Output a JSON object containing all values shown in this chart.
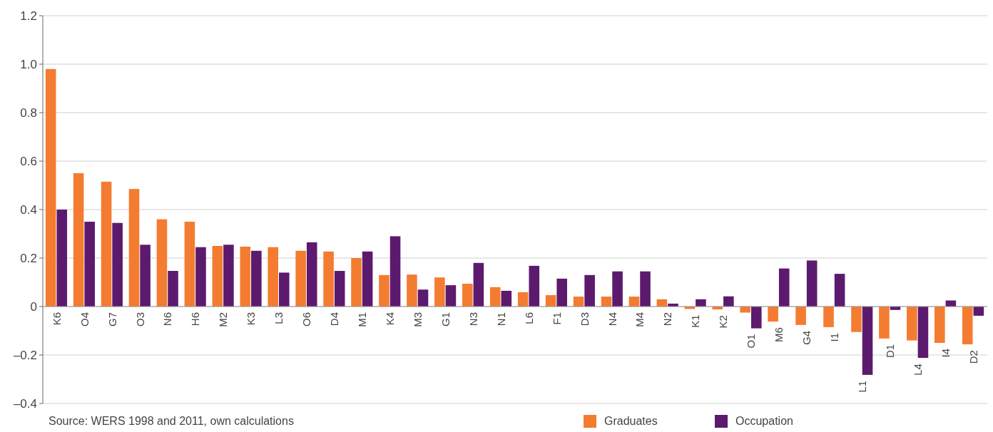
{
  "chart_data": {
    "type": "bar",
    "categories": [
      "K6",
      "O4",
      "G7",
      "O3",
      "N6",
      "H6",
      "M2",
      "K3",
      "L3",
      "O6",
      "D4",
      "M1",
      "K4",
      "M3",
      "G1",
      "N3",
      "N1",
      "L6",
      "F1",
      "D3",
      "N4",
      "M4",
      "N2",
      "K1",
      "K2",
      "O1",
      "M6",
      "G4",
      "I1",
      "L1",
      "D1",
      "L4",
      "I4",
      "D2"
    ],
    "series": [
      {
        "name": "Graduates",
        "color": "#f47c30",
        "values": [
          0.98,
          0.55,
          0.515,
          0.485,
          0.36,
          0.35,
          0.25,
          0.247,
          0.245,
          0.23,
          0.227,
          0.2,
          0.13,
          0.132,
          0.12,
          0.094,
          0.08,
          0.059,
          0.047,
          0.041,
          0.041,
          0.041,
          0.03,
          -0.01,
          -0.012,
          -0.025,
          -0.062,
          -0.076,
          -0.085,
          -0.105,
          -0.132,
          -0.14,
          -0.15,
          -0.156
        ]
      },
      {
        "name": "Occupation",
        "color": "#5c1a6e",
        "values": [
          0.4,
          0.35,
          0.345,
          0.255,
          0.147,
          0.245,
          0.255,
          0.23,
          0.14,
          0.265,
          0.147,
          0.227,
          0.29,
          0.07,
          0.088,
          0.18,
          0.065,
          0.168,
          0.115,
          0.13,
          0.145,
          0.145,
          0.012,
          0.03,
          0.042,
          -0.09,
          0.157,
          0.19,
          0.135,
          -0.282,
          -0.014,
          -0.212,
          0.025,
          -0.038
        ]
      }
    ],
    "ylim": [
      -0.4,
      1.2
    ],
    "yticks": [
      {
        "value": -0.4,
        "label": "–0.4"
      },
      {
        "value": -0.2,
        "label": "–0.2"
      },
      0,
      0.2,
      0.4,
      0.6,
      0.8,
      {
        "value": 1,
        "label": "1.0"
      },
      1.2
    ],
    "grid": "y",
    "legend": "bottom",
    "annotations": [
      "Source: WERS 1998 and 2011, own calculations"
    ]
  }
}
